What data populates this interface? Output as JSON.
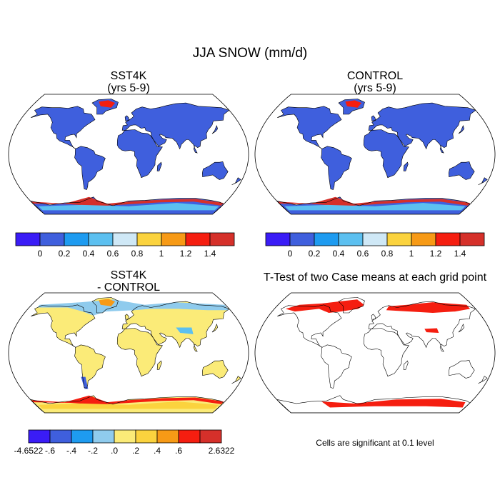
{
  "figure": {
    "title": "JJA SNOW (mm/d)"
  },
  "panels": [
    {
      "id": "sst4k",
      "title_line1": "SST4K",
      "title_line2": "(yrs 5-9)"
    },
    {
      "id": "control",
      "title_line1": "CONTROL",
      "title_line2": "(yrs 5-9)"
    },
    {
      "id": "diff",
      "title_line1": "SST4K",
      "title_line2": "- CONTROL"
    },
    {
      "id": "ttest",
      "title_line1": "T-Test of two Case means at each grid point",
      "title_line2": ""
    }
  ],
  "colorbars": {
    "field": {
      "colors": [
        "#3a1cf6",
        "#3f5fdd",
        "#1e9bf0",
        "#5cc0f0",
        "#cfe8f6",
        "#fbd33e",
        "#f79a16",
        "#f51e10",
        "#d5302a"
      ],
      "labels": [
        "0",
        "0.2",
        "0.4",
        "0.6",
        "0.8",
        "1",
        "1.2",
        "1.4"
      ]
    },
    "diff": {
      "colors": [
        "#3a1cf6",
        "#3f5fdd",
        "#1e9bf0",
        "#8fcbed",
        "#fbeb78",
        "#fbd33e",
        "#f79a16",
        "#f51e10",
        "#d5302a"
      ],
      "labels": [
        "-4.6522",
        "-.6",
        "-.4",
        "-.2",
        ".0",
        ".2",
        ".4",
        ".6",
        "2.6322"
      ]
    }
  },
  "ttest_note": "Cells are significant at 0.1 level",
  "map_colors": {
    "ocean": "#ffffff",
    "land_field": "#3f5fdd",
    "land_diff": "#fbeb78",
    "diff_high_lat": "#8fcbed",
    "significant": "#f51e10",
    "coast": "#000000"
  }
}
